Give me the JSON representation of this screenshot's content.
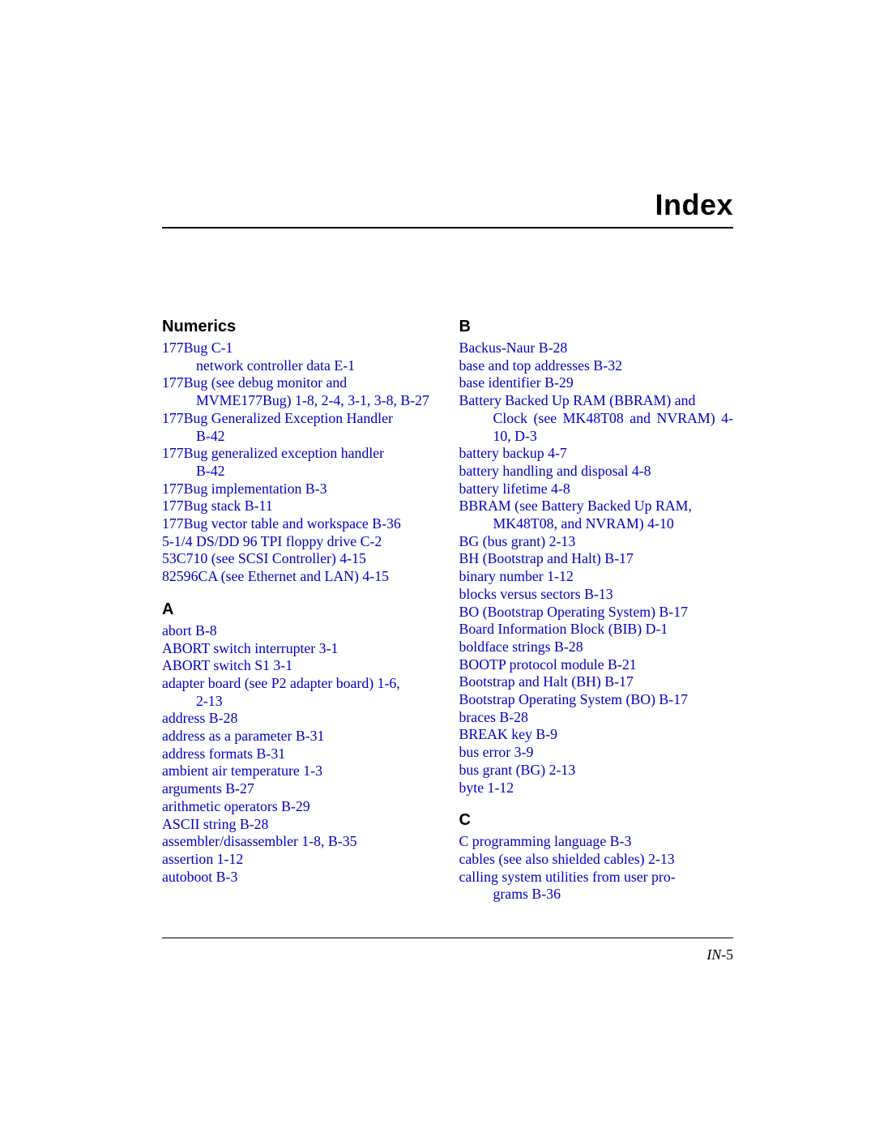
{
  "title": "Index",
  "page_number_label": "IN-",
  "page_number": "5",
  "link_color": "#0000c0",
  "text_color": "#000000",
  "font_size_body": 17.8,
  "font_size_title": 36,
  "font_size_section": 20,
  "left": {
    "sections": [
      {
        "heading": "Numerics",
        "entries": [
          {
            "text": "177Bug C-1"
          },
          {
            "text": "network controller data E-1",
            "sub": true
          },
          {
            "text": "177Bug (see debug monitor and",
            "justify": true
          },
          {
            "text": "MVME177Bug) 1-8, 2-4, 3-1, 3-8, B-27",
            "cont": true
          },
          {
            "text": "177Bug Generalized Exception Handler",
            "justify": true
          },
          {
            "text": "B-42",
            "cont": true
          },
          {
            "text": "177Bug generalized exception handler",
            "justify": true
          },
          {
            "text": "B-42",
            "cont": true
          },
          {
            "text": "177Bug implementation B-3"
          },
          {
            "text": "177Bug stack B-11"
          },
          {
            "text": "177Bug vector table and workspace B-36"
          },
          {
            "text": "5-1/4 DS/DD 96 TPI floppy drive C-2"
          },
          {
            "text": "53C710 (see SCSI Controller) 4-15"
          },
          {
            "text": "82596CA (see Ethernet and LAN) 4-15"
          }
        ]
      },
      {
        "heading": "A",
        "mt": true,
        "entries": [
          {
            "text": "abort B-8"
          },
          {
            "text": "ABORT switch interrupter 3-1"
          },
          {
            "text": "ABORT switch S1 3-1"
          },
          {
            "text": "adapter board (see P2 adapter board) 1-6,"
          },
          {
            "text": "2-13",
            "cont": true
          },
          {
            "text": "address B-28"
          },
          {
            "text": "address as a parameter B-31"
          },
          {
            "text": "address formats B-31"
          },
          {
            "text": "ambient air temperature 1-3"
          },
          {
            "text": "arguments B-27"
          },
          {
            "text": "arithmetic operators B-29"
          },
          {
            "text": "ASCII string B-28"
          },
          {
            "text": "assembler/disassembler 1-8, B-35"
          },
          {
            "text": "assertion 1-12"
          },
          {
            "text": "autoboot B-3"
          }
        ]
      }
    ]
  },
  "right": {
    "sections": [
      {
        "heading": "B",
        "entries": [
          {
            "text": "Backus-Naur B-28"
          },
          {
            "text": "base and top addresses B-32"
          },
          {
            "text": "base identifier B-29"
          },
          {
            "text": "Battery Backed Up RAM (BBRAM) and",
            "justify": true
          },
          {
            "text": "Clock (see MK48T08 and NVRAM) 4-10, D-3",
            "cont": true,
            "justify": true
          },
          {
            "text": "battery backup 4-7"
          },
          {
            "text": "battery handling and disposal 4-8"
          },
          {
            "text": "battery lifetime 4-8"
          },
          {
            "text": "BBRAM (see Battery Backed Up RAM,",
            "justify": true
          },
          {
            "text": "MK48T08, and NVRAM) 4-10",
            "cont": true
          },
          {
            "text": "BG (bus grant) 2-13"
          },
          {
            "text": "BH (Bootstrap and Halt) B-17"
          },
          {
            "text": "binary number 1-12"
          },
          {
            "text": "blocks versus sectors B-13"
          },
          {
            "text": "BO (Bootstrap Operating System) B-17"
          },
          {
            "text": "Board Information Block (BIB) D-1"
          },
          {
            "text": "boldface strings B-28"
          },
          {
            "text": "BOOTP protocol module B-21"
          },
          {
            "text": "Bootstrap and Halt (BH) B-17"
          },
          {
            "text": "Bootstrap Operating System (BO) B-17"
          },
          {
            "text": "braces B-28"
          },
          {
            "text": "BREAK key B-9"
          },
          {
            "text": "bus error 3-9"
          },
          {
            "text": "bus grant (BG) 2-13"
          },
          {
            "text": "byte 1-12"
          }
        ]
      },
      {
        "heading": "C",
        "mt": true,
        "entries": [
          {
            "text": "C programming language B-3"
          },
          {
            "text": "cables (see also shielded cables) 2-13"
          },
          {
            "text": "calling system utilities from user pro-",
            "justify": true
          },
          {
            "text": "grams B-36",
            "cont": true
          }
        ]
      }
    ]
  }
}
